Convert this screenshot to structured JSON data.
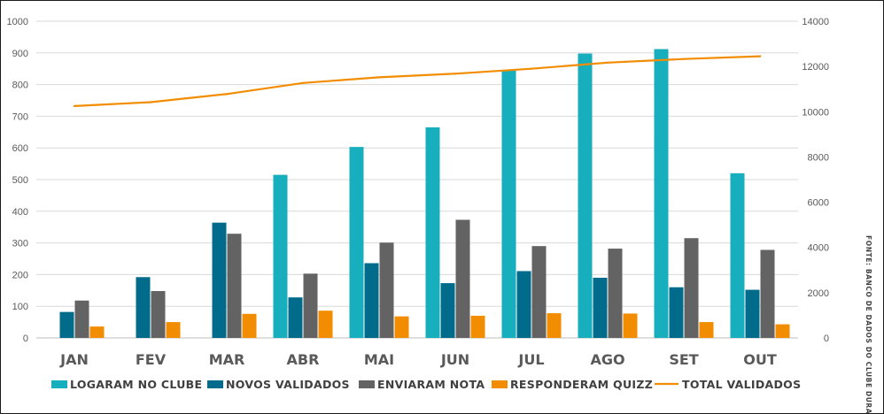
{
  "chart_data": {
    "type": "bar",
    "categories": [
      "JAN",
      "FEV",
      "MAR",
      "ABR",
      "MAI",
      "JUN",
      "JUL",
      "AGO",
      "SET",
      "OUT"
    ],
    "series": [
      {
        "name": "LOGARAM NO CLUBE",
        "type": "bar",
        "axis": "left",
        "color": "#17AEBD",
        "values": [
          null,
          null,
          null,
          515,
          603,
          665,
          845,
          898,
          912,
          520
        ]
      },
      {
        "name": "NOVOS VALIDADOS",
        "type": "bar",
        "axis": "left",
        "color": "#006B8A",
        "values": [
          82,
          192,
          364,
          128,
          236,
          173,
          211,
          190,
          160,
          152
        ]
      },
      {
        "name": "ENVIARAM NOTA",
        "type": "bar",
        "axis": "left",
        "color": "#636363",
        "values": [
          118,
          148,
          329,
          203,
          301,
          373,
          290,
          282,
          315,
          278
        ]
      },
      {
        "name": "RESPONDERAM QUIZZ",
        "type": "bar",
        "axis": "left",
        "color": "#F28C00",
        "values": [
          36,
          50,
          76,
          86,
          68,
          70,
          78,
          77,
          50,
          43
        ]
      },
      {
        "name": "TOTAL VALIDADOS",
        "type": "line",
        "axis": "right",
        "color": "#F28C00",
        "values": [
          10250,
          10420,
          10780,
          11270,
          11520,
          11680,
          11900,
          12170,
          12330,
          12450
        ]
      }
    ],
    "ylim": [
      0,
      1000
    ],
    "yticks": [
      0,
      100,
      200,
      300,
      400,
      500,
      600,
      700,
      800,
      900,
      1000
    ],
    "y2lim": [
      0,
      14000
    ],
    "y2ticks": [
      0,
      2000,
      4000,
      6000,
      8000,
      10000,
      12000,
      14000
    ],
    "grid": true,
    "legend_position": "bottom",
    "source_note": "FONTE: BANCO DE DADOS DO CLUBE DURATEX"
  }
}
